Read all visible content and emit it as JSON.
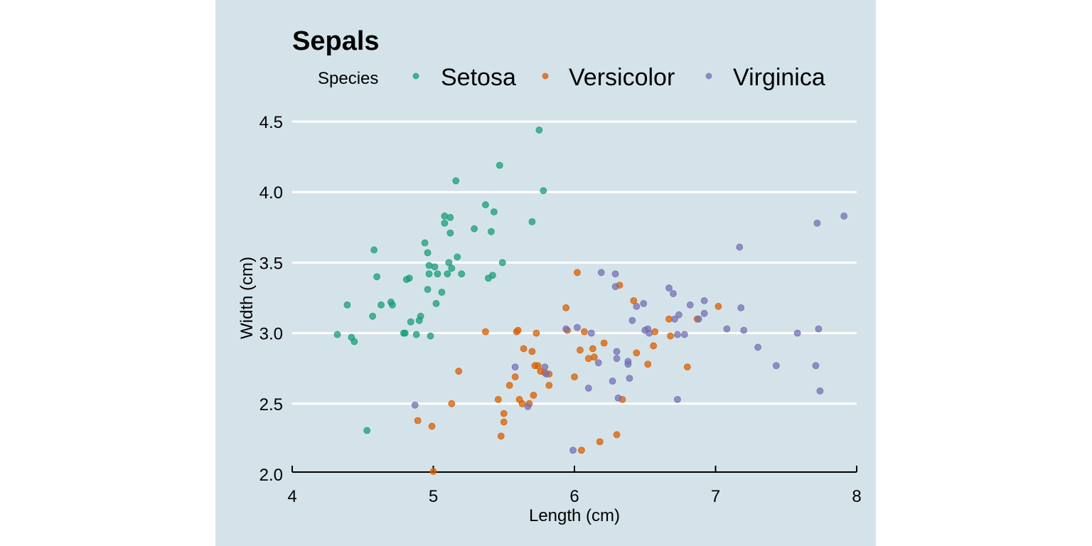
{
  "chart_data": {
    "type": "scatter",
    "title": "Sepals",
    "xlabel": "Length (cm)",
    "ylabel": "Width (cm)",
    "xlim": [
      4,
      8
    ],
    "ylim": [
      2.0,
      4.6
    ],
    "xticks": [
      "4",
      "5",
      "6",
      "7",
      "8"
    ],
    "yticks": [
      "2.0",
      "2.5",
      "3.0",
      "3.5",
      "4.0",
      "4.5"
    ],
    "grid": "horizontal",
    "legend": {
      "title": "Species",
      "placement": "top"
    },
    "colors": {
      "background": "#d4e3ea",
      "Setosa": "#1b9e77",
      "Versicolor": "#d95f02",
      "Virginica": "#7570b3"
    },
    "series": [
      {
        "name": "Setosa",
        "points": [
          [
            4.32,
            2.99
          ],
          [
            4.39,
            3.2
          ],
          [
            4.42,
            2.97
          ],
          [
            4.44,
            2.94
          ],
          [
            4.53,
            2.31
          ],
          [
            4.57,
            3.12
          ],
          [
            4.58,
            3.59
          ],
          [
            4.6,
            3.4
          ],
          [
            4.63,
            3.2
          ],
          [
            4.7,
            3.22
          ],
          [
            4.71,
            3.2
          ],
          [
            4.79,
            3.0
          ],
          [
            4.8,
            3.0
          ],
          [
            4.81,
            3.38
          ],
          [
            4.83,
            3.39
          ],
          [
            4.84,
            3.08
          ],
          [
            4.88,
            2.99
          ],
          [
            4.9,
            3.09
          ],
          [
            4.91,
            3.12
          ],
          [
            4.94,
            3.64
          ],
          [
            4.96,
            3.57
          ],
          [
            4.97,
            3.48
          ],
          [
            4.97,
            3.42
          ],
          [
            4.96,
            3.31
          ],
          [
            4.98,
            2.98
          ],
          [
            5.01,
            3.47
          ],
          [
            5.02,
            3.21
          ],
          [
            5.03,
            3.42
          ],
          [
            5.06,
            3.29
          ],
          [
            5.08,
            3.78
          ],
          [
            5.08,
            3.83
          ],
          [
            5.1,
            3.42
          ],
          [
            5.11,
            3.5
          ],
          [
            5.12,
            3.82
          ],
          [
            5.12,
            3.71
          ],
          [
            5.13,
            3.46
          ],
          [
            5.16,
            4.08
          ],
          [
            5.17,
            3.54
          ],
          [
            5.2,
            3.42
          ],
          [
            5.29,
            3.74
          ],
          [
            5.37,
            3.91
          ],
          [
            5.39,
            3.39
          ],
          [
            5.41,
            3.72
          ],
          [
            5.42,
            3.41
          ],
          [
            5.43,
            3.86
          ],
          [
            5.47,
            4.19
          ],
          [
            5.49,
            3.5
          ],
          [
            5.7,
            3.79
          ],
          [
            5.75,
            4.44
          ],
          [
            5.78,
            4.01
          ]
        ]
      },
      {
        "name": "Versicolor",
        "points": [
          [
            4.89,
            2.38
          ],
          [
            4.99,
            2.34
          ],
          [
            5.0,
            2.02
          ],
          [
            5.13,
            2.5
          ],
          [
            5.18,
            2.73
          ],
          [
            5.37,
            3.01
          ],
          [
            5.46,
            2.53
          ],
          [
            5.48,
            2.27
          ],
          [
            5.5,
            2.43
          ],
          [
            5.5,
            2.37
          ],
          [
            5.54,
            2.63
          ],
          [
            5.58,
            2.69
          ],
          [
            5.59,
            3.01
          ],
          [
            5.6,
            3.02
          ],
          [
            5.61,
            2.53
          ],
          [
            5.63,
            2.5
          ],
          [
            5.64,
            2.89
          ],
          [
            5.68,
            2.5
          ],
          [
            5.7,
            2.87
          ],
          [
            5.71,
            2.56
          ],
          [
            5.72,
            2.77
          ],
          [
            5.73,
            3.0
          ],
          [
            5.74,
            2.77
          ],
          [
            5.76,
            2.73
          ],
          [
            5.79,
            2.72
          ],
          [
            5.82,
            2.63
          ],
          [
            5.82,
            2.71
          ],
          [
            5.94,
            3.18
          ],
          [
            5.95,
            3.02
          ],
          [
            6.0,
            2.69
          ],
          [
            6.02,
            3.43
          ],
          [
            6.04,
            2.88
          ],
          [
            6.05,
            2.17
          ],
          [
            6.07,
            3.01
          ],
          [
            6.1,
            2.82
          ],
          [
            6.13,
            2.89
          ],
          [
            6.14,
            2.83
          ],
          [
            6.18,
            2.23
          ],
          [
            6.21,
            2.93
          ],
          [
            6.3,
            2.28
          ],
          [
            6.32,
            3.34
          ],
          [
            6.34,
            2.53
          ],
          [
            6.42,
            3.23
          ],
          [
            6.44,
            2.86
          ],
          [
            6.52,
            2.78
          ],
          [
            6.56,
            2.91
          ],
          [
            6.57,
            3.01
          ],
          [
            6.67,
            3.1
          ],
          [
            6.68,
            2.98
          ],
          [
            6.8,
            2.76
          ],
          [
            6.87,
            3.1
          ],
          [
            7.02,
            3.19
          ]
        ]
      },
      {
        "name": "Virginica",
        "points": [
          [
            4.87,
            2.49
          ],
          [
            5.58,
            2.76
          ],
          [
            5.67,
            2.48
          ],
          [
            5.79,
            2.76
          ],
          [
            5.8,
            2.71
          ],
          [
            5.94,
            3.03
          ],
          [
            5.99,
            2.17
          ],
          [
            6.02,
            3.04
          ],
          [
            6.1,
            2.61
          ],
          [
            6.12,
            3.0
          ],
          [
            6.17,
            2.79
          ],
          [
            6.19,
            3.43
          ],
          [
            6.29,
            3.42
          ],
          [
            6.29,
            3.33
          ],
          [
            6.3,
            2.87
          ],
          [
            6.3,
            2.82
          ],
          [
            6.31,
            2.54
          ],
          [
            6.27,
            2.66
          ],
          [
            6.38,
            2.8
          ],
          [
            6.38,
            2.78
          ],
          [
            6.39,
            2.68
          ],
          [
            6.41,
            3.09
          ],
          [
            6.44,
            3.19
          ],
          [
            6.49,
            3.21
          ],
          [
            6.5,
            3.02
          ],
          [
            6.52,
            3.03
          ],
          [
            6.53,
            3.0
          ],
          [
            6.67,
            3.32
          ],
          [
            6.7,
            3.28
          ],
          [
            6.71,
            3.1
          ],
          [
            6.73,
            2.99
          ],
          [
            6.73,
            2.53
          ],
          [
            6.74,
            3.13
          ],
          [
            6.78,
            2.99
          ],
          [
            6.82,
            3.2
          ],
          [
            6.88,
            3.1
          ],
          [
            6.92,
            3.23
          ],
          [
            6.92,
            3.14
          ],
          [
            7.08,
            3.03
          ],
          [
            7.17,
            3.61
          ],
          [
            7.18,
            3.18
          ],
          [
            7.2,
            3.02
          ],
          [
            7.3,
            2.9
          ],
          [
            7.43,
            2.77
          ],
          [
            7.58,
            3.0
          ],
          [
            7.71,
            2.77
          ],
          [
            7.72,
            3.78
          ],
          [
            7.73,
            3.03
          ],
          [
            7.74,
            2.59
          ],
          [
            7.91,
            3.83
          ]
        ]
      }
    ]
  }
}
